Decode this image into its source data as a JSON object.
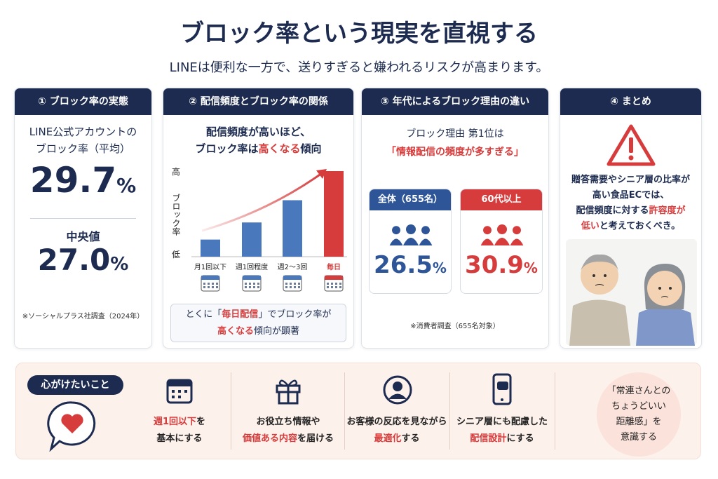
{
  "header": {
    "title": "ブロック率という現実を直視する",
    "subtitle": "LINEは便利な一方で、送りすぎると嫌われるリスクが高まります。"
  },
  "panels": [
    {
      "heading": "① ブロック率の実態",
      "intro": [
        [
          {
            "text": "LINE公式アカウントの"
          }
        ],
        [
          {
            "text": "ブロック率（平均）"
          }
        ]
      ],
      "average": "29.7",
      "average_unit": "%",
      "median_label": "中央値",
      "median": "27.0",
      "median_unit": "%",
      "source": "※ソーシャルプラス社調査（2024年）"
    },
    {
      "heading": "② 配信頻度とブロック率の関係",
      "intro": [
        [
          {
            "text": "配信頻度が高いほど、"
          }
        ],
        [
          {
            "text": "ブロック率は"
          },
          {
            "text": "高くなる",
            "em": true
          },
          {
            "text": "傾向"
          }
        ]
      ],
      "chart": {
        "type": "bar",
        "y_high": "高",
        "y_label": "ブロック率",
        "y_low": "低",
        "categories": [
          "月1回以下",
          "週1回程度",
          "週2〜3回",
          "毎日"
        ],
        "values": [
          20,
          40,
          66,
          100
        ],
        "colors": [
          "#4a78bd",
          "#4a78bd",
          "#4a78bd",
          "#d63c3c"
        ],
        "ylim": [
          0,
          100
        ]
      },
      "note": [
        [
          {
            "text": "とくに「"
          },
          {
            "text": "毎日配信",
            "em": true
          },
          {
            "text": "」でブロック率が"
          }
        ],
        [
          {
            "text": "高くなる",
            "em": true
          },
          {
            "text": "傾向が顕著"
          }
        ]
      ]
    },
    {
      "heading": "③ 年代によるブロック理由の違い",
      "intro": [
        [
          {
            "text": "ブロック理由 第1位は"
          }
        ],
        [
          {
            "text": "「情報配信の頻度が多すぎる」",
            "em": true
          }
        ]
      ],
      "groups": [
        {
          "name": "全体（655名）",
          "value": "26.5",
          "unit": "%",
          "color": "#2d5597"
        },
        {
          "name": "60代以上",
          "value": "30.9",
          "unit": "%",
          "color": "#d63c3c"
        }
      ],
      "source": "※消費者調査（655名対象）"
    },
    {
      "heading": "④ まとめ",
      "text": [
        [
          {
            "text": "贈答需要やシニア層の比率が"
          }
        ],
        [
          {
            "text": "高い食品ECでは、"
          }
        ],
        [
          {
            "text": "配信頻度に対する"
          },
          {
            "text": "許容度が",
            "em": true
          }
        ],
        [
          {
            "text": "低い",
            "em": true
          },
          {
            "text": "と考えておくべき。"
          }
        ]
      ]
    }
  ],
  "tips": {
    "label": "心がけたいこと",
    "items": [
      [
        [
          {
            "text": "週1回以下",
            "em": true
          },
          {
            "text": "を"
          }
        ],
        [
          {
            "text": "基本にする"
          }
        ]
      ],
      [
        [
          {
            "text": "お役立ち情報や"
          }
        ],
        [
          {
            "text": "価値ある内容",
            "em": true
          },
          {
            "text": "を届ける"
          }
        ]
      ],
      [
        [
          {
            "text": "お客様の反応を見ながら"
          }
        ],
        [
          {
            "text": "最適化",
            "em": true
          },
          {
            "text": "する"
          }
        ]
      ],
      [
        [
          {
            "text": "シニア層にも配慮した"
          }
        ],
        [
          {
            "text": "配信設計",
            "em": true
          },
          {
            "text": "にする"
          }
        ]
      ]
    ],
    "closing": [
      [
        {
          "text": "「常連さんとの"
        }
      ],
      [
        {
          "text": "ちょうどいい"
        }
      ],
      [
        {
          "text": "距離感」を"
        }
      ],
      [
        {
          "text": "意識する"
        }
      ]
    ]
  }
}
